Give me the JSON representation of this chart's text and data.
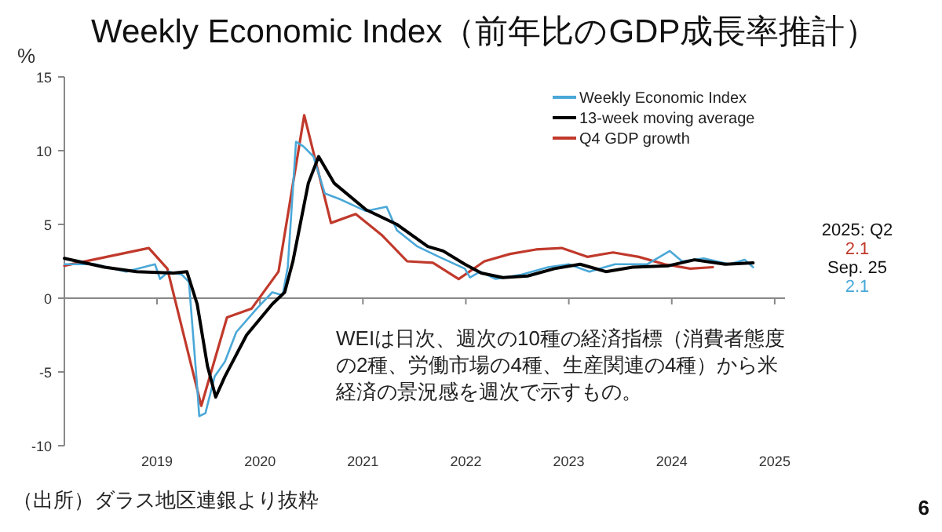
{
  "chart_data": {
    "type": "line",
    "title": "Weekly Economic Index（前年比のGDP成長率推計）",
    "ylabel": "%",
    "xlim": [
      2018.1,
      2025.1
    ],
    "xticks": [
      2019,
      2020,
      2021,
      2022,
      2023,
      2024,
      2025
    ],
    "ylim": [
      -10,
      15
    ],
    "yticks": [
      -10,
      -5,
      0,
      5,
      10,
      15
    ],
    "grid": false,
    "ref_lines": [
      {
        "axis": "y",
        "value": 0,
        "color": "#888888"
      }
    ],
    "legend": "top right",
    "series": [
      {
        "name": "Weekly Economic Index",
        "color": "#4aa8d8",
        "x": [
          2018.1,
          2018.4,
          2018.7,
          2018.98,
          2019.03,
          2019.11,
          2019.24,
          2019.31,
          2019.39,
          2019.41,
          2019.47,
          2019.56,
          2019.66,
          2019.77,
          2019.97,
          2020.12,
          2020.22,
          2020.27,
          2020.35,
          2020.42,
          2020.52,
          2020.63,
          2020.78,
          2021.03,
          2021.23,
          2021.33,
          2021.53,
          2021.74,
          2021.99,
          2022.04,
          2022.14,
          2022.29,
          2022.54,
          2022.8,
          2023.0,
          2023.2,
          2023.45,
          2023.76,
          2023.98,
          2024.1,
          2024.31,
          2024.56,
          2024.71,
          2024.79
        ],
        "values": [
          2.3,
          2.3,
          1.8,
          2.3,
          1.3,
          1.8,
          1.6,
          1.1,
          -6.0,
          -8.0,
          -7.8,
          -5.3,
          -4.3,
          -2.3,
          -0.7,
          0.4,
          0.2,
          2.1,
          10.6,
          10.3,
          9.6,
          7.1,
          6.7,
          5.9,
          6.2,
          4.6,
          3.5,
          2.8,
          2.0,
          1.4,
          1.8,
          1.3,
          1.6,
          2.1,
          2.3,
          1.8,
          2.3,
          2.3,
          3.2,
          2.5,
          2.7,
          2.3,
          2.6,
          2.1
        ]
      },
      {
        "name": "13-week moving average",
        "color": "#000000",
        "x": [
          2018.1,
          2018.49,
          2018.8,
          2019.16,
          2019.29,
          2019.39,
          2019.49,
          2019.57,
          2019.66,
          2019.87,
          2020.12,
          2020.24,
          2020.32,
          2020.47,
          2020.57,
          2020.72,
          2021.03,
          2021.33,
          2021.63,
          2021.78,
          2021.99,
          2022.15,
          2022.36,
          2022.6,
          2022.86,
          2023.11,
          2023.36,
          2023.62,
          2023.97,
          2024.22,
          2024.52,
          2024.79
        ],
        "values": [
          2.7,
          2.1,
          1.8,
          1.7,
          1.8,
          -0.4,
          -4.6,
          -6.7,
          -5.3,
          -2.5,
          -0.4,
          0.4,
          2.5,
          7.8,
          9.6,
          7.8,
          6.0,
          5.0,
          3.5,
          3.2,
          2.3,
          1.7,
          1.4,
          1.5,
          2.0,
          2.3,
          1.8,
          2.1,
          2.2,
          2.6,
          2.3,
          2.4
        ]
      },
      {
        "name": "Q4 GDP growth",
        "color": "#c0392b",
        "x": [
          2018.1,
          2018.92,
          2019.1,
          2019.43,
          2019.68,
          2019.92,
          2020.18,
          2020.43,
          2020.69,
          2020.93,
          2021.18,
          2021.43,
          2021.68,
          2021.93,
          2022.18,
          2022.43,
          2022.68,
          2022.93,
          2023.18,
          2023.43,
          2023.68,
          2023.93,
          2024.18,
          2024.4
        ],
        "values": [
          2.2,
          3.4,
          2.0,
          -7.3,
          -1.3,
          -0.7,
          1.8,
          12.4,
          5.1,
          5.7,
          4.3,
          2.5,
          2.4,
          1.3,
          2.5,
          3.0,
          3.3,
          3.4,
          2.8,
          3.1,
          2.8,
          2.3,
          2.0,
          2.1
        ]
      }
    ],
    "annotations": [
      "2025: Q2",
      "2.1",
      "Sep. 25",
      "2.1",
      "WEIは日次、週次の10種の経済指標（消費者態度の2種、労働市場の4種、生産関連の4種）から米経済の景況感を週次で示すもの。",
      "（出所）ダラス地区連銀より抜粋",
      "6"
    ]
  }
}
